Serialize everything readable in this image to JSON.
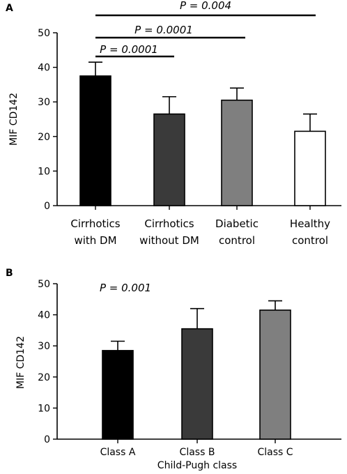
{
  "chart_data": [
    {
      "panel": "A",
      "type": "bar",
      "categories": [
        [
          "Cirrhotics",
          "with DM"
        ],
        [
          "Cirrhotics",
          "without DM"
        ],
        [
          "Diabetic",
          "control"
        ],
        [
          "Healthy",
          "control"
        ]
      ],
      "values": [
        37.5,
        26.5,
        30.5,
        21.5
      ],
      "errors": [
        4.0,
        5.0,
        3.5,
        5.0
      ],
      "colors": [
        "#000000",
        "#3a3a3a",
        "#7f7f7f",
        "#ffffff"
      ],
      "ylabel": "MIF CD142",
      "xlabel": "",
      "ylim": [
        0,
        50
      ],
      "yticks": [
        0,
        10,
        20,
        30,
        40,
        50
      ],
      "annotations": [
        {
          "text": "P = 0.0001",
          "from": 0,
          "to": 1
        },
        {
          "text": "P = 0.0001",
          "from": 0,
          "to": 2
        },
        {
          "text": "P = 0.004",
          "from": 0,
          "to": 3
        }
      ]
    },
    {
      "panel": "B",
      "type": "bar",
      "categories": [
        [
          "Class A"
        ],
        [
          "Class B"
        ],
        [
          "Class C"
        ]
      ],
      "values": [
        28.5,
        35.5,
        41.5
      ],
      "errors": [
        3.0,
        6.5,
        3.0
      ],
      "colors": [
        "#000000",
        "#3a3a3a",
        "#7f7f7f"
      ],
      "ylabel": "MIF CD142",
      "xlabel": "Child-Pugh class",
      "ylim": [
        0,
        50
      ],
      "yticks": [
        0,
        10,
        20,
        30,
        40,
        50
      ],
      "annotations": [
        {
          "text": "P = 0.001"
        }
      ]
    }
  ]
}
